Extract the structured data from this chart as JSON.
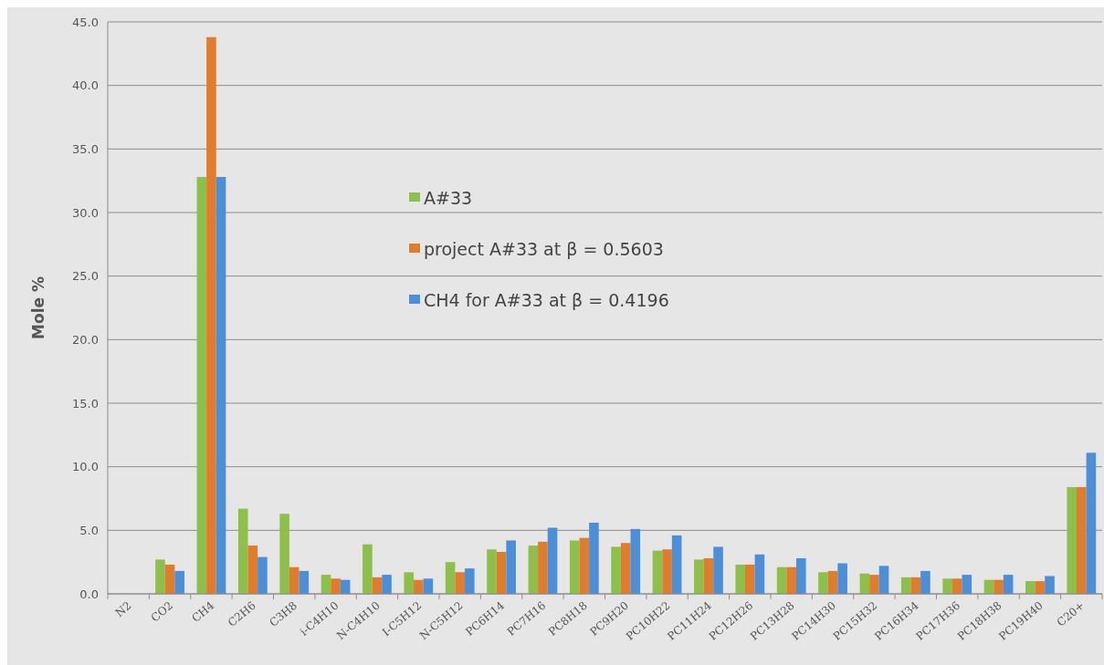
{
  "chart_data": {
    "type": "bar",
    "ylabel": "Mole %",
    "categories": [
      "N2",
      "CO2",
      "CH4",
      "C2H6",
      "C3H8",
      "i-C4H10",
      "N-C4H10",
      "I-C5H12",
      "N-C5H12",
      "PC6H14",
      "PC7H16",
      "PC8H18",
      "PC9H20",
      "PC10H22",
      "PC11H24",
      "PC12H26",
      "PC13H28",
      "PC14H30",
      "PC15H32",
      "PC16H34",
      "PC17H36",
      "PC18H38",
      "PC19H40",
      "C20+"
    ],
    "series": [
      {
        "name": "A#33",
        "color": "#8dc04a",
        "values": [
          0,
          2.7,
          32.8,
          6.7,
          6.3,
          1.5,
          3.9,
          1.7,
          2.5,
          3.5,
          3.8,
          4.2,
          3.7,
          3.4,
          2.7,
          2.3,
          2.1,
          1.7,
          1.6,
          1.3,
          1.2,
          1.1,
          1.0,
          8.4
        ]
      },
      {
        "name": "project A#33 at β = 0.5603",
        "color": "#e07c2c",
        "values": [
          0,
          2.3,
          43.8,
          3.8,
          2.1,
          1.2,
          1.3,
          1.1,
          1.7,
          3.3,
          4.1,
          4.4,
          4.0,
          3.5,
          2.8,
          2.3,
          2.1,
          1.8,
          1.5,
          1.3,
          1.2,
          1.1,
          1.0,
          8.4
        ]
      },
      {
        "name": "CH4 for A#33 at β = 0.4196",
        "color": "#4a8fd8",
        "values": [
          0,
          1.8,
          32.8,
          2.9,
          1.8,
          1.1,
          1.5,
          1.2,
          2.0,
          4.2,
          5.2,
          5.6,
          5.1,
          4.6,
          3.7,
          3.1,
          2.8,
          2.4,
          2.2,
          1.8,
          1.5,
          1.5,
          1.4,
          11.1
        ]
      }
    ],
    "ylim": [
      0,
      45
    ],
    "yticks": [
      {
        "value": 0,
        "label": "0.0"
      },
      {
        "value": 5,
        "label": "5.0"
      },
      {
        "value": 10,
        "label": "10.0"
      },
      {
        "value": 15,
        "label": "15.0"
      },
      {
        "value": 20,
        "label": "20.0"
      },
      {
        "value": 25,
        "label": "25.0"
      },
      {
        "value": 30,
        "label": "30.0"
      },
      {
        "value": 35,
        "label": "35.0"
      },
      {
        "value": 40,
        "label": "40.0"
      },
      {
        "value": 45,
        "label": "45.0"
      }
    ],
    "grid": "y",
    "legend": "top"
  }
}
